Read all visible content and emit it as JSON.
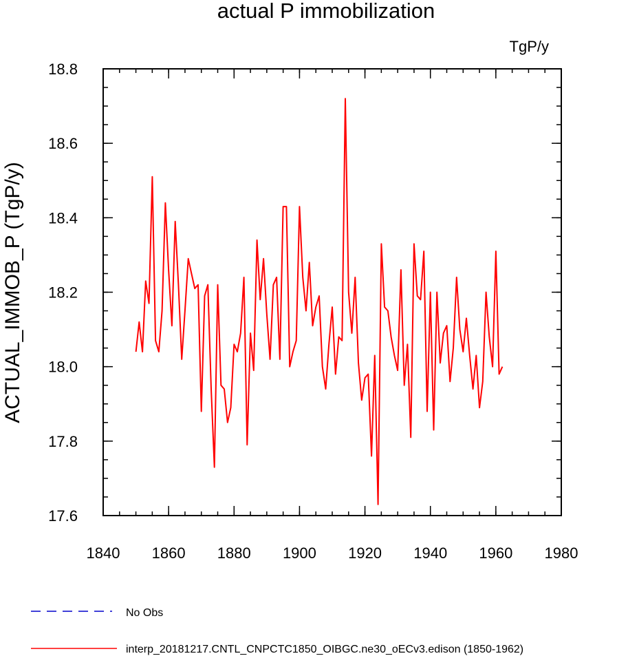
{
  "chart_data": {
    "type": "line",
    "title": "actual P immobilization",
    "units": "TgP/y",
    "xlabel": "",
    "ylabel": "ACTUAL_IMMOB_P  (TgP/y)",
    "xlim": [
      1840,
      1980
    ],
    "ylim": [
      17.6,
      18.8
    ],
    "xticks": [
      1840,
      1860,
      1880,
      1900,
      1920,
      1940,
      1960,
      1980
    ],
    "yticks": [
      17.6,
      17.8,
      18.0,
      18.2,
      18.4,
      18.6,
      18.8
    ],
    "xtick_labels": [
      "1840",
      "1860",
      "1880",
      "1900",
      "1920",
      "1940",
      "1960",
      "1980"
    ],
    "ytick_labels": [
      "17.6",
      "17.8",
      "18.0",
      "18.2",
      "18.4",
      "18.6",
      "18.8"
    ],
    "legend_position": "bottom",
    "series": [
      {
        "name": "No Obs",
        "color": "#0000cc",
        "style": "dashed",
        "x": [],
        "values": []
      },
      {
        "name": "interp_20181217.CNTL_CNPCTC1850_OIBGC.ne30_oECv3.edison (1850-1962)",
        "color": "#ff0000",
        "style": "solid",
        "x": [
          1850,
          1851,
          1852,
          1853,
          1854,
          1855,
          1856,
          1857,
          1858,
          1859,
          1860,
          1861,
          1862,
          1863,
          1864,
          1865,
          1866,
          1867,
          1868,
          1869,
          1870,
          1871,
          1872,
          1873,
          1874,
          1875,
          1876,
          1877,
          1878,
          1879,
          1880,
          1881,
          1882,
          1883,
          1884,
          1885,
          1886,
          1887,
          1888,
          1889,
          1890,
          1891,
          1892,
          1893,
          1894,
          1895,
          1896,
          1897,
          1898,
          1899,
          1900,
          1901,
          1902,
          1903,
          1904,
          1905,
          1906,
          1907,
          1908,
          1909,
          1910,
          1911,
          1912,
          1913,
          1914,
          1915,
          1916,
          1917,
          1918,
          1919,
          1920,
          1921,
          1922,
          1923,
          1924,
          1925,
          1926,
          1927,
          1928,
          1929,
          1930,
          1931,
          1932,
          1933,
          1934,
          1935,
          1936,
          1937,
          1938,
          1939,
          1940,
          1941,
          1942,
          1943,
          1944,
          1945,
          1946,
          1947,
          1948,
          1949,
          1950,
          1951,
          1952,
          1953,
          1954,
          1955,
          1956,
          1957,
          1958,
          1959,
          1960,
          1961,
          1962
        ],
        "values": [
          18.04,
          18.12,
          18.04,
          18.23,
          18.17,
          18.51,
          18.07,
          18.04,
          18.15,
          18.44,
          18.26,
          18.11,
          18.39,
          18.22,
          18.02,
          18.15,
          18.29,
          18.25,
          18.21,
          18.22,
          17.88,
          18.19,
          18.22,
          17.94,
          17.73,
          18.22,
          17.95,
          17.94,
          17.85,
          17.89,
          18.06,
          18.04,
          18.09,
          18.24,
          17.79,
          18.09,
          17.99,
          18.34,
          18.18,
          18.29,
          18.14,
          18.02,
          18.22,
          18.24,
          18.02,
          18.43,
          18.43,
          18.0,
          18.04,
          18.07,
          18.43,
          18.24,
          18.15,
          18.28,
          18.11,
          18.16,
          18.19,
          18.0,
          17.94,
          18.06,
          18.16,
          17.98,
          18.08,
          18.07,
          18.72,
          18.2,
          18.09,
          18.24,
          18.01,
          17.91,
          17.97,
          17.98,
          17.76,
          18.03,
          17.63,
          18.33,
          18.16,
          18.15,
          18.08,
          18.03,
          17.99,
          18.26,
          17.95,
          18.06,
          17.81,
          18.33,
          18.19,
          18.18,
          18.31,
          17.88,
          18.2,
          17.83,
          18.2,
          18.01,
          18.09,
          18.11,
          17.96,
          18.05,
          18.24,
          18.1,
          18.04,
          18.13,
          18.03,
          17.94,
          18.03,
          17.89,
          17.96,
          18.2,
          18.08,
          18.0,
          18.31,
          17.98,
          18.0
        ]
      }
    ]
  }
}
